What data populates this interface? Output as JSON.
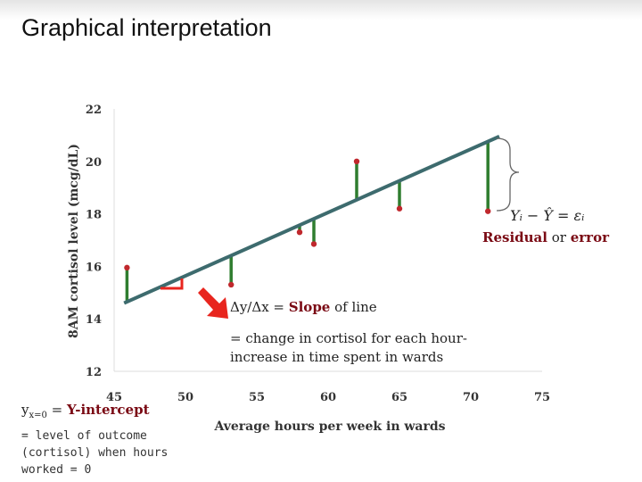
{
  "slide": {
    "title": "Graphical interpretation"
  },
  "chart_data": {
    "type": "scatter",
    "xlabel": "Average hours per week in wards",
    "ylabel": "8AM cortisol level (mcg/dL)",
    "xlim": [
      45,
      75
    ],
    "ylim": [
      12,
      22
    ],
    "xticks": [
      "45",
      "50",
      "55",
      "60",
      "65",
      "70",
      "75"
    ],
    "yticks": [
      "12",
      "14",
      "16",
      "18",
      "20",
      "22"
    ],
    "points": [
      {
        "x": 45.9,
        "y": 15.95
      },
      {
        "x": 53.2,
        "y": 15.3
      },
      {
        "x": 58.0,
        "y": 17.3
      },
      {
        "x": 59.0,
        "y": 16.85
      },
      {
        "x": 62.0,
        "y": 20.0
      },
      {
        "x": 65.0,
        "y": 18.2
      },
      {
        "x": 71.2,
        "y": 18.1
      }
    ],
    "regression_line": {
      "x": [
        45.7,
        72.0
      ],
      "y": [
        14.6,
        20.95
      ]
    },
    "colors": {
      "line": "#3d6b6e",
      "residual": "#2f7d2f",
      "point": "#c0282d",
      "arrow": "#e8251e"
    }
  },
  "annotations": {
    "residual_formula": "Yᵢ − Ŷ = εᵢ",
    "residual_word": "Residual",
    "or": "or",
    "error_word": "error",
    "slope_prefix": "Δy/Δx =",
    "slope_word": "Slope",
    "slope_suffix": "of line",
    "slope_desc_1": "= change in cortisol for each hour-",
    "slope_desc_2": "increase in time spent in wards",
    "intercept_y": "y",
    "intercept_sub": "x=0",
    "intercept_eq": "=",
    "intercept_word": "Y-intercept",
    "intercept_desc_1": "= level of outcome",
    "intercept_desc_2": "(cortisol) when hours",
    "intercept_desc_3": "worked = 0"
  }
}
